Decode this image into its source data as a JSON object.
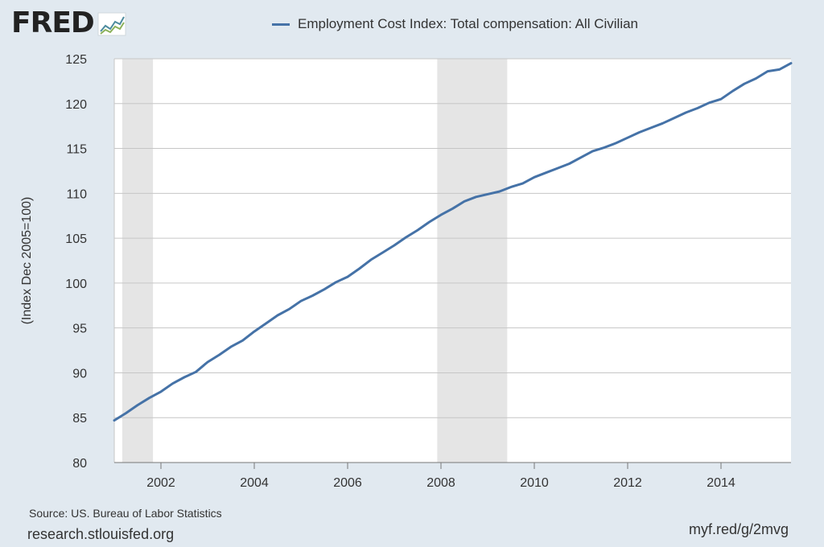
{
  "logo": {
    "text": "FRED"
  },
  "footer": {
    "source": "Source: US. Bureau of Labor Statistics",
    "site": "research.stlouisfed.org",
    "shortlink": "myf.red/g/2mvg"
  },
  "colors": {
    "series": "#4572a7",
    "background": "#e1e9f0",
    "plot": "#ffffff",
    "recession": "#e5e5e5",
    "grid": "#c6c6c6"
  },
  "chart_data": {
    "type": "line",
    "title": "",
    "xlabel": "",
    "ylabel": "(Index Dec 2005=100)",
    "xlim": [
      2001.0,
      2015.5
    ],
    "ylim": [
      80,
      125
    ],
    "grid": true,
    "legend_position": "top-center",
    "x_ticks": [
      2002,
      2004,
      2006,
      2008,
      2010,
      2012,
      2014
    ],
    "x_tick_labels": [
      "2002",
      "2004",
      "2006",
      "2008",
      "2010",
      "2012",
      "2014"
    ],
    "y_ticks": [
      80,
      85,
      90,
      95,
      100,
      105,
      110,
      115,
      120,
      125
    ],
    "y_tick_labels": [
      "80",
      "85",
      "90",
      "95",
      "100",
      "105",
      "110",
      "115",
      "120",
      "125"
    ],
    "recessions": [
      {
        "start": 2001.17,
        "end": 2001.83
      },
      {
        "start": 2007.92,
        "end": 2009.42
      }
    ],
    "series": [
      {
        "name": "Employment Cost Index: Total compensation: All Civilian",
        "x": [
          2001.0,
          2001.25,
          2001.5,
          2001.75,
          2002.0,
          2002.25,
          2002.5,
          2002.75,
          2003.0,
          2003.25,
          2003.5,
          2003.75,
          2004.0,
          2004.25,
          2004.5,
          2004.75,
          2005.0,
          2005.25,
          2005.5,
          2005.75,
          2006.0,
          2006.25,
          2006.5,
          2006.75,
          2007.0,
          2007.25,
          2007.5,
          2007.75,
          2008.0,
          2008.25,
          2008.5,
          2008.75,
          2009.0,
          2009.25,
          2009.5,
          2009.75,
          2010.0,
          2010.25,
          2010.5,
          2010.75,
          2011.0,
          2011.25,
          2011.5,
          2011.75,
          2012.0,
          2012.25,
          2012.5,
          2012.75,
          2013.0,
          2013.25,
          2013.5,
          2013.75,
          2014.0,
          2014.25,
          2014.5,
          2014.75,
          2015.0,
          2015.25,
          2015.5
        ],
        "values": [
          84.7,
          85.5,
          86.4,
          87.2,
          87.9,
          88.8,
          89.5,
          90.1,
          91.2,
          92.0,
          92.9,
          93.6,
          94.6,
          95.5,
          96.4,
          97.1,
          98.0,
          98.6,
          99.3,
          100.1,
          100.7,
          101.6,
          102.6,
          103.4,
          104.2,
          105.1,
          105.9,
          106.8,
          107.6,
          108.3,
          109.1,
          109.6,
          109.9,
          110.2,
          110.7,
          111.1,
          111.8,
          112.3,
          112.8,
          113.3,
          114.0,
          114.7,
          115.1,
          115.6,
          116.2,
          116.8,
          117.3,
          117.8,
          118.4,
          119.0,
          119.5,
          120.1,
          120.5,
          121.4,
          122.2,
          122.8,
          123.6,
          123.8,
          124.5
        ]
      }
    ]
  }
}
